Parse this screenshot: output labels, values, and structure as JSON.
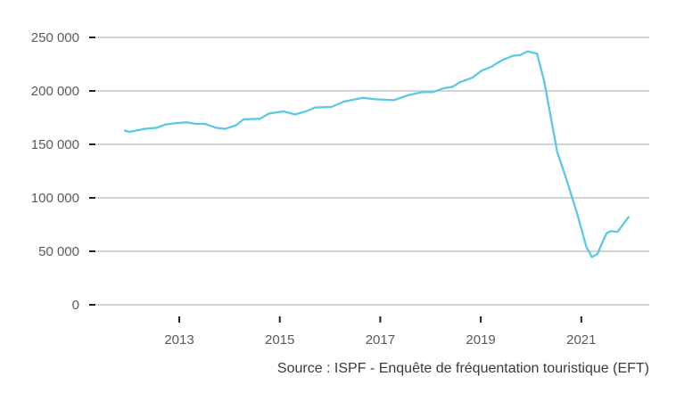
{
  "chart_data": {
    "type": "line",
    "title": "",
    "xlabel": "",
    "ylabel": "",
    "ylim": [
      0,
      250000
    ],
    "xlim": [
      2011.2,
      2022.5
    ],
    "y_ticks": [
      0,
      50000,
      100000,
      150000,
      200000,
      250000
    ],
    "y_tick_labels": [
      "0",
      "50 000",
      "100 000",
      "150 000",
      "200 000",
      "250 000"
    ],
    "x_ticks": [
      2013,
      2015,
      2017,
      2019,
      2021
    ],
    "x_tick_labels": [
      "2013",
      "2015",
      "2017",
      "2019",
      "2021"
    ],
    "grid": "horizontal",
    "line_color": "#5bc8e6",
    "grid_color": "#d3d3d3",
    "series": [
      {
        "x": [
          2011.92,
          2012.01,
          2012.31,
          2012.56,
          2012.71,
          2012.96,
          2013.15,
          2013.33,
          2013.51,
          2013.73,
          2013.91,
          2014.13,
          2014.28,
          2014.61,
          2014.79,
          2015.08,
          2015.3,
          2015.52,
          2015.7,
          2016.03,
          2016.28,
          2016.65,
          2016.9,
          2017.27,
          2017.56,
          2017.85,
          2018.04,
          2018.26,
          2018.44,
          2018.58,
          2018.84,
          2019.02,
          2019.2,
          2019.42,
          2019.64,
          2019.79,
          2019.93,
          2020.12,
          2020.26,
          2020.52,
          2020.7,
          2020.92,
          2021.1,
          2021.21,
          2021.32,
          2021.5,
          2021.58,
          2021.72,
          2021.94
        ],
        "y": [
          162800,
          161700,
          164500,
          165600,
          168400,
          170000,
          170600,
          169200,
          169200,
          165600,
          164500,
          167800,
          173400,
          173900,
          178900,
          180800,
          178000,
          180800,
          184400,
          185000,
          190000,
          193600,
          192200,
          191300,
          196000,
          199000,
          198800,
          202400,
          203800,
          208000,
          212600,
          219000,
          222300,
          228700,
          232800,
          233700,
          237000,
          234800,
          209300,
          142900,
          118000,
          84800,
          54400,
          44700,
          47500,
          66800,
          68800,
          68200,
          82000
        ]
      }
    ],
    "source": "Source : ISPF - Enquête de fréquentation touristique (EFT)"
  }
}
